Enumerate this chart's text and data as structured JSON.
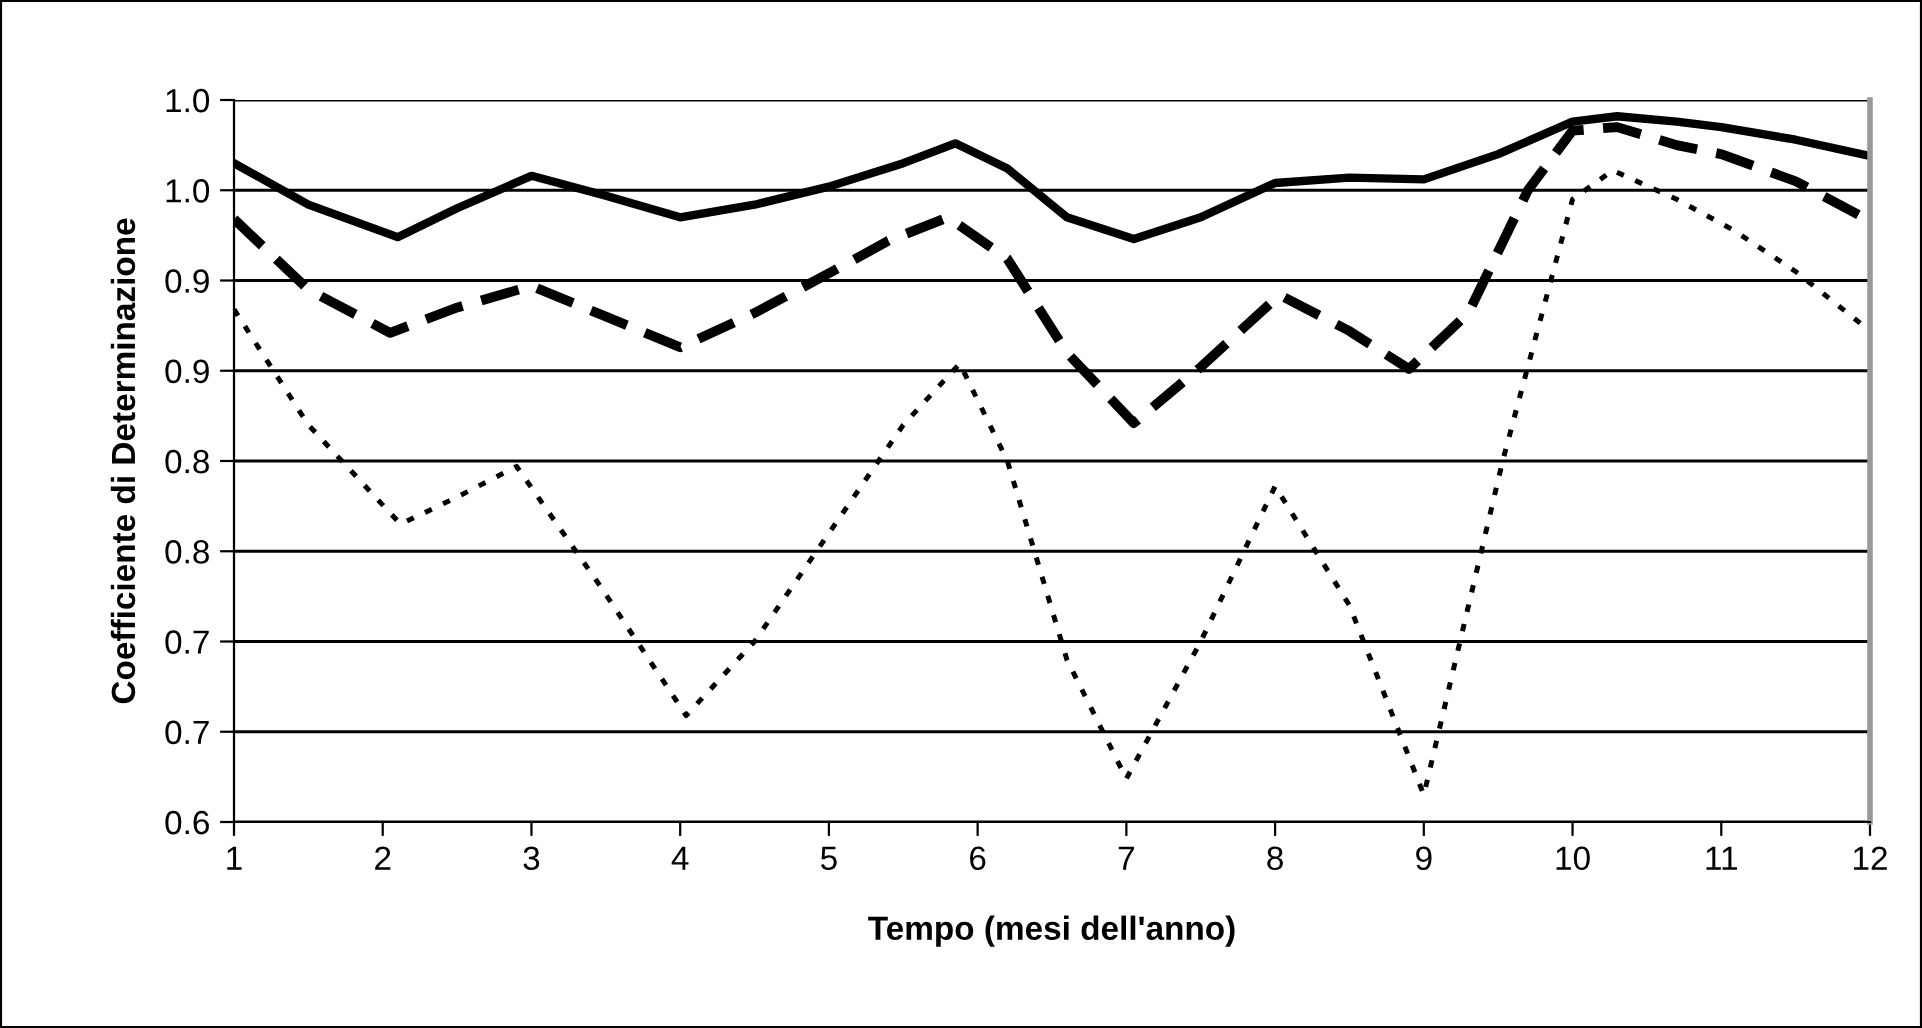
{
  "chart_data": {
    "type": "line",
    "xlabel": "Tempo (mesi dell'anno)",
    "ylabel": "Coefficiente di Determinazione",
    "xlim": [
      1,
      12
    ],
    "xticks": [
      1,
      2,
      3,
      4,
      5,
      6,
      7,
      8,
      9,
      10,
      11,
      12
    ],
    "ylim": [
      0.6,
      1.0
    ],
    "yticks": [
      {
        "value": 0.6,
        "label": "0.6"
      },
      {
        "value": 0.65,
        "label": "0.7"
      },
      {
        "value": 0.7,
        "label": "0.7"
      },
      {
        "value": 0.75,
        "label": "0.8"
      },
      {
        "value": 0.8,
        "label": "0.8"
      },
      {
        "value": 0.85,
        "label": "0.9"
      },
      {
        "value": 0.9,
        "label": "0.9"
      },
      {
        "value": 0.95,
        "label": "1.0"
      },
      {
        "value": 1.0,
        "label": "1.0"
      }
    ],
    "grid": "y",
    "legend": false,
    "marker": "none",
    "series": [
      {
        "color": "#000000",
        "line_style": "solid",
        "x": [
          1,
          1.5,
          2.1,
          2.5,
          3.0,
          3.5,
          4.0,
          4.5,
          5.0,
          5.5,
          5.85,
          6.2,
          6.6,
          7.05,
          7.5,
          8.0,
          8.5,
          9.0,
          9.5,
          10.0,
          10.3,
          10.7,
          11.0,
          11.5,
          12.0
        ],
        "values": [
          0.965,
          0.942,
          0.924,
          0.94,
          0.958,
          0.947,
          0.935,
          0.942,
          0.952,
          0.965,
          0.976,
          0.962,
          0.935,
          0.923,
          0.935,
          0.954,
          0.957,
          0.956,
          0.97,
          0.988,
          0.991,
          0.988,
          0.985,
          0.978,
          0.969
        ]
      },
      {
        "color": "#000000",
        "line_style": "dashed",
        "x": [
          1,
          1.5,
          2.05,
          2.5,
          3.0,
          3.5,
          4.0,
          4.5,
          5.0,
          5.4,
          5.8,
          6.2,
          6.6,
          7.05,
          7.5,
          8.03,
          8.5,
          8.9,
          9.3,
          9.7,
          10.0,
          10.3,
          10.7,
          11.0,
          11.5,
          12.0
        ],
        "values": [
          0.934,
          0.895,
          0.871,
          0.885,
          0.897,
          0.88,
          0.863,
          0.882,
          0.904,
          0.922,
          0.935,
          0.912,
          0.86,
          0.821,
          0.852,
          0.892,
          0.872,
          0.851,
          0.882,
          0.95,
          0.983,
          0.985,
          0.975,
          0.97,
          0.955,
          0.933
        ]
      },
      {
        "color": "#000000",
        "line_style": "dotted",
        "x": [
          1,
          1.5,
          2.12,
          2.5,
          2.9,
          3.46,
          4.04,
          4.5,
          5.0,
          5.5,
          5.88,
          6.2,
          6.6,
          7.0,
          7.5,
          8.0,
          8.5,
          9.0,
          9.53,
          10.0,
          10.27,
          10.7,
          11.08,
          11.5,
          12.0
        ],
        "values": [
          0.884,
          0.82,
          0.765,
          0.78,
          0.797,
          0.731,
          0.659,
          0.7,
          0.76,
          0.82,
          0.854,
          0.8,
          0.69,
          0.624,
          0.7,
          0.786,
          0.72,
          0.615,
          0.8,
          0.945,
          0.961,
          0.945,
          0.928,
          0.905,
          0.872
        ]
      }
    ]
  }
}
